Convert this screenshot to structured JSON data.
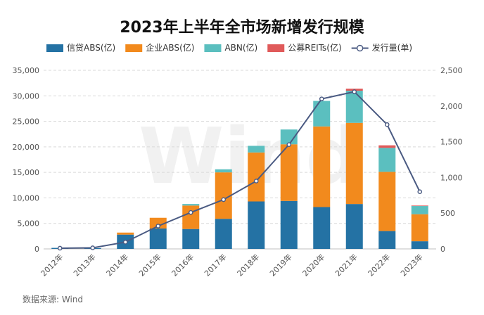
{
  "chart_data": {
    "type": "bar",
    "title": "2023年上半年全市场新增发行规模",
    "categories": [
      "2012年",
      "2013年",
      "2014年",
      "2015年",
      "2016年",
      "2017年",
      "2018年",
      "2019年",
      "2020年",
      "2021年",
      "2022年",
      "2023年"
    ],
    "series": [
      {
        "name": "信贷ABS(亿)",
        "type": "bar",
        "axis": "left",
        "color": "#2472a4",
        "values": [
          200,
          150,
          2800,
          4000,
          3900,
          5900,
          9300,
          9400,
          8200,
          8800,
          3500,
          1500
        ]
      },
      {
        "name": "企业ABS(亿)",
        "type": "bar",
        "axis": "left",
        "color": "#f28a1d",
        "values": [
          0,
          0,
          400,
          2100,
          4600,
          9100,
          9600,
          11100,
          15800,
          15900,
          11600,
          5300
        ]
      },
      {
        "name": "ABN(亿)",
        "type": "bar",
        "axis": "left",
        "color": "#5bbfbf",
        "values": [
          0,
          0,
          0,
          0,
          300,
          600,
          1300,
          2900,
          5000,
          6300,
          4700,
          1600
        ]
      },
      {
        "name": "公募REITs(亿)",
        "type": "bar",
        "axis": "left",
        "color": "#e05a5a",
        "values": [
          0,
          0,
          0,
          0,
          0,
          0,
          0,
          0,
          0,
          400,
          500,
          100
        ]
      },
      {
        "name": "发行量(单)",
        "type": "line",
        "axis": "right",
        "color": "#4a5a82",
        "values": [
          10,
          15,
          95,
          320,
          510,
          690,
          950,
          1460,
          2100,
          2200,
          1740,
          800
        ]
      }
    ],
    "y_left": {
      "min": 0,
      "max": 35000,
      "ticks": [
        "0",
        "5,000",
        "10,000",
        "15,000",
        "20,000",
        "25,000",
        "30,000",
        "35,000"
      ]
    },
    "y_right": {
      "min": 0,
      "max": 2500,
      "ticks": [
        "0",
        "500",
        "1,000",
        "1,500",
        "2,000",
        "2,500"
      ]
    },
    "watermark": "Wind",
    "source": "数据来源: Wind"
  }
}
